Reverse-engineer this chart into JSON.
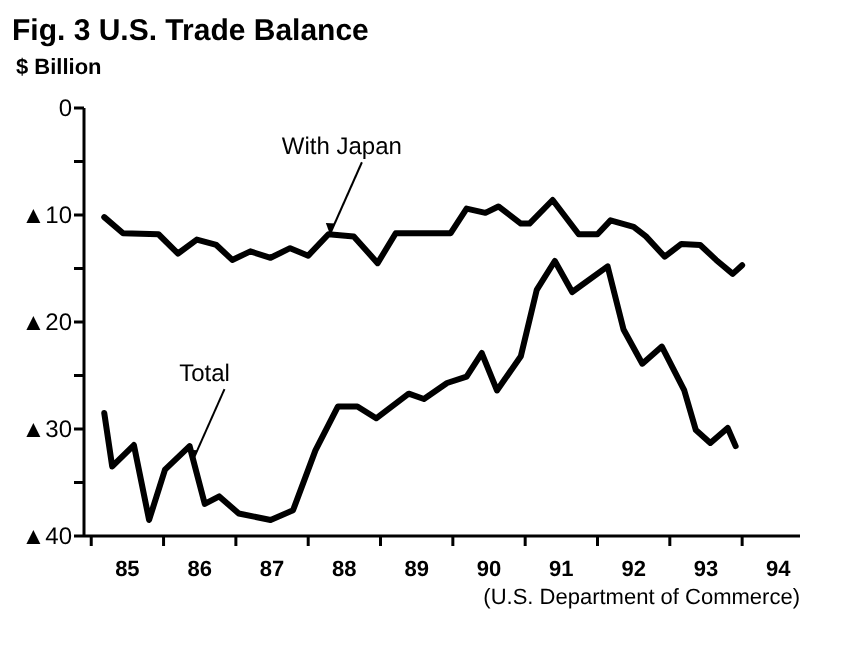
{
  "chart_data": {
    "type": "line",
    "title": "Fig. 3  U.S. Trade Balance",
    "ylabel": "$ Billion",
    "xlim": [
      84.4,
      94.3
    ],
    "ylim": [
      -40,
      0
    ],
    "yticks": [
      0,
      {
        "value": -5,
        "label": null
      },
      {
        "value": -10,
        "label": "▲10"
      },
      {
        "value": -15,
        "label": null
      },
      {
        "value": -20,
        "label": "▲20"
      },
      {
        "value": -25,
        "label": null
      },
      {
        "value": -30,
        "label": "▲30"
      },
      {
        "value": -35,
        "label": null
      },
      {
        "value": -40,
        "label": "▲40"
      }
    ],
    "xticks": [
      {
        "value": 84.5,
        "label": null
      },
      85,
      {
        "value": 85.5,
        "label": null
      },
      86,
      {
        "value": 86.5,
        "label": null
      },
      87,
      {
        "value": 87.5,
        "label": null
      },
      88,
      {
        "value": 88.5,
        "label": null
      },
      89,
      {
        "value": 89.5,
        "label": null
      },
      90,
      {
        "value": 90.5,
        "label": null
      },
      91,
      {
        "value": 91.5,
        "label": null
      },
      92,
      {
        "value": 92.5,
        "label": null
      },
      93,
      {
        "value": 93.5,
        "label": null
      },
      94
    ],
    "grid": false,
    "marker": "none",
    "line_style": "solid",
    "series": [
      {
        "color": "#000000",
        "x": [
          84.68,
          84.94,
          85.43,
          85.7,
          85.96,
          86.23,
          86.45,
          86.7,
          86.98,
          87.25,
          87.5,
          87.78,
          88.13,
          88.46,
          88.71,
          89.47,
          89.69,
          89.95,
          90.13,
          90.44,
          90.56,
          90.88,
          91.24,
          91.5,
          91.68,
          92.0,
          92.17,
          92.43,
          92.66,
          92.92,
          93.14,
          93.37,
          93.5
        ],
        "values": [
          -10.2,
          -11.7,
          -11.8,
          -13.6,
          -12.3,
          -12.8,
          -14.2,
          -13.4,
          -14.0,
          -13.1,
          -13.8,
          -11.8,
          -12.0,
          -14.5,
          -11.7,
          -11.7,
          -9.4,
          -9.8,
          -9.2,
          -10.8,
          -10.8,
          -8.6,
          -11.8,
          -11.8,
          -10.5,
          -11.1,
          -12.0,
          -13.9,
          -12.7,
          -12.8,
          -14.2,
          -15.5,
          -14.7
        ]
      },
      {
        "color": "#000000",
        "x": [
          84.68,
          84.79,
          85.09,
          85.3,
          85.52,
          85.86,
          86.07,
          86.27,
          86.54,
          86.98,
          87.29,
          87.6,
          87.91,
          88.18,
          88.44,
          88.89,
          89.1,
          89.42,
          89.69,
          89.9,
          90.11,
          90.44,
          90.66,
          90.91,
          91.15,
          91.64,
          91.86,
          92.12,
          92.39,
          92.7,
          92.86,
          93.06,
          93.3,
          93.41
        ],
        "values": [
          -28.5,
          -33.5,
          -31.5,
          -38.5,
          -33.8,
          -31.6,
          -37.0,
          -36.3,
          -37.9,
          -38.5,
          -37.6,
          -32.0,
          -27.9,
          -27.9,
          -29.0,
          -26.7,
          -27.2,
          -25.7,
          -25.1,
          -22.9,
          -26.4,
          -23.2,
          -17.0,
          -14.3,
          -17.2,
          -14.8,
          -20.7,
          -23.9,
          -22.3,
          -26.4,
          -30.1,
          -31.3,
          -29.9,
          -31.6
        ]
      }
    ],
    "annotations": [
      {
        "text": "With Japan",
        "x": 87.8,
        "y": -11.8
      },
      {
        "text": "Total",
        "x": 85.9,
        "y": -33
      },
      "(U.S. Department of Commerce)"
    ]
  }
}
